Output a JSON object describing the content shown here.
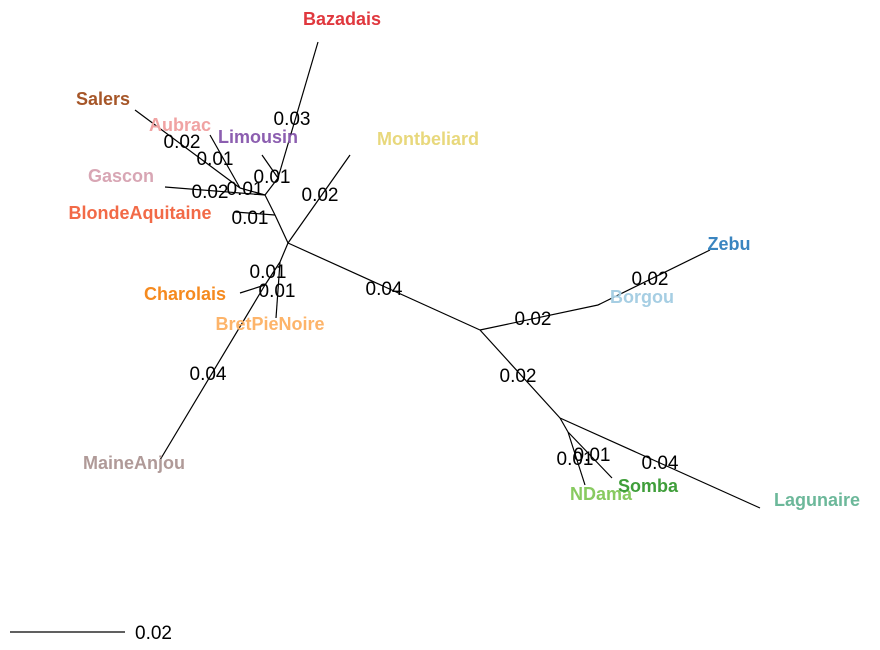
{
  "leaves": [
    {
      "label": "Bazadais",
      "color": "#e0383e"
    },
    {
      "label": "Salers",
      "color": "#a65628"
    },
    {
      "label": "Aubrac",
      "color": "#f0a3a3"
    },
    {
      "label": "Limousin",
      "color": "#8c5eb0"
    },
    {
      "label": "Montbeliard",
      "color": "#e8d87c"
    },
    {
      "label": "Gascon",
      "color": "#d8a6b4"
    },
    {
      "label": "BlondeAquitaine",
      "color": "#f26a47"
    },
    {
      "label": "Charolais",
      "color": "#f58a1f"
    },
    {
      "label": "BretPieNoire",
      "color": "#fdb46a"
    },
    {
      "label": "MaineAnjou",
      "color": "#b09a98"
    },
    {
      "label": "Zebu",
      "color": "#3a85c0"
    },
    {
      "label": "Borgou",
      "color": "#a6cee3"
    },
    {
      "label": "NDama",
      "color": "#88ca60"
    },
    {
      "label": "Somba",
      "color": "#3f9e3a"
    },
    {
      "label": "Lagunaire",
      "color": "#6cb89a"
    }
  ],
  "edges": [
    {
      "label": "0.04"
    },
    {
      "label": "0.02"
    },
    {
      "label": "0.02"
    },
    {
      "label": "0.02"
    },
    {
      "label": "0.04"
    },
    {
      "label": "0.01"
    },
    {
      "label": "0.01"
    },
    {
      "label": "0.01"
    },
    {
      "label": "0.01"
    },
    {
      "label": "0.04"
    },
    {
      "label": "0.02"
    },
    {
      "label": "0.01"
    },
    {
      "label": "0.01"
    },
    {
      "label": "0.02"
    },
    {
      "label": "0.01"
    },
    {
      "label": "0.01"
    },
    {
      "label": "0.02"
    },
    {
      "label": "0.03"
    }
  ],
  "scale_bar": {
    "label": "0.02"
  }
}
